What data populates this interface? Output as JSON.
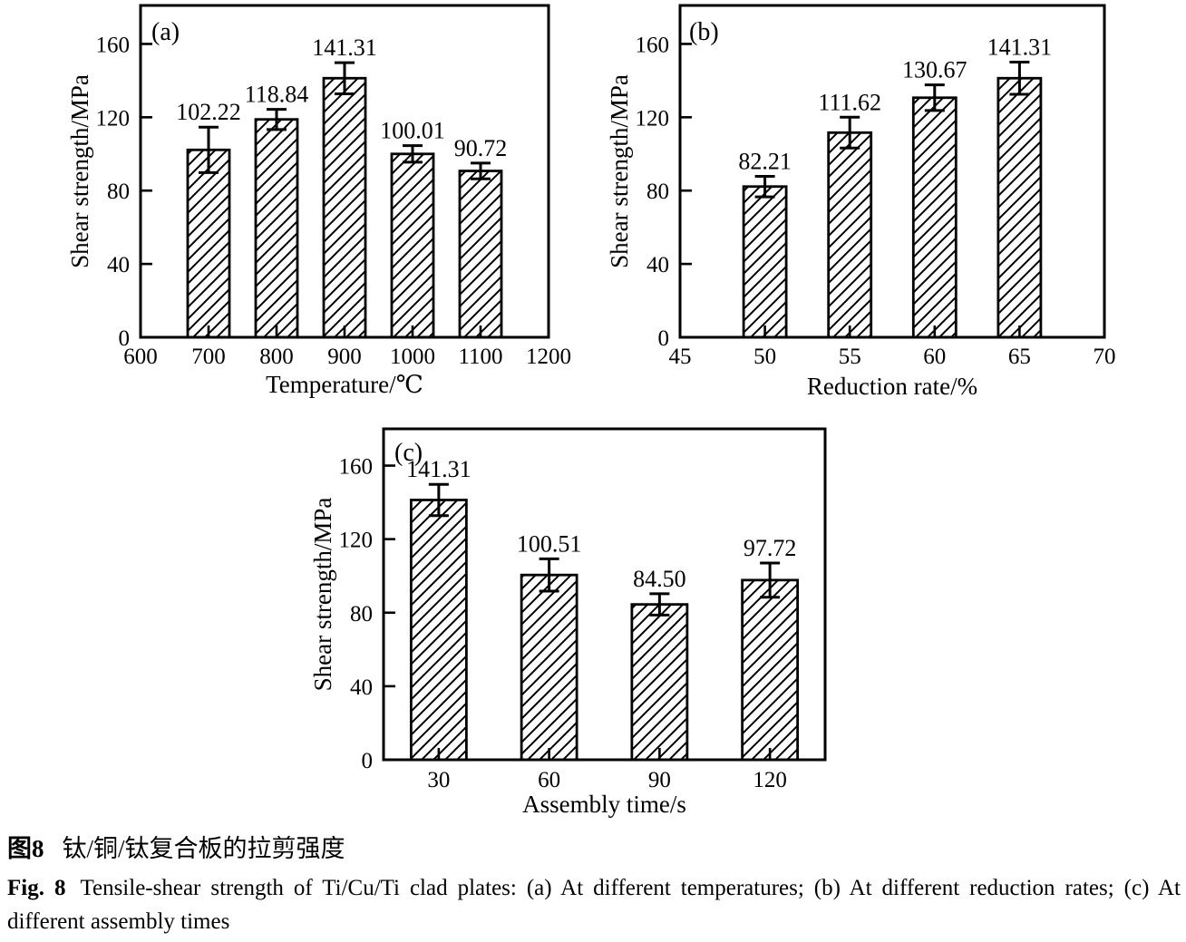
{
  "colors": {
    "ink": "#000000",
    "background": "#ffffff"
  },
  "figure": {
    "caption_cn_bold": "图8",
    "caption_cn_text": "钛/铜/钛复合板的拉剪强度",
    "caption_en_bold": "Fig. 8",
    "caption_en_line1": "Tensile-shear strength of Ti/Cu/Ti clad plates: (a) At different temperatures; (b) At different reduction rates; (c) At",
    "caption_en_line2": "different assembly times"
  },
  "chart_data": [
    {
      "type": "bar",
      "panel": "(a)",
      "xlabel": "Temperature/℃",
      "ylabel": "Shear strength/MPa",
      "x_axis": "linear",
      "xlim": [
        600,
        1200
      ],
      "x_ticks": [
        600,
        700,
        800,
        900,
        1000,
        1100,
        1200
      ],
      "y_ticks": [
        0,
        40,
        80,
        120,
        160
      ],
      "ylim": [
        0,
        181
      ],
      "grid": false,
      "bar_fill": "diagonal-hatch",
      "categories": [
        700,
        800,
        900,
        1000,
        1100
      ],
      "values": [
        102.22,
        118.84,
        141.31,
        100.01,
        90.72
      ],
      "errors": [
        12.4,
        5.5,
        8.5,
        4.5,
        4.3
      ],
      "labels": [
        "102.22",
        "118.84",
        "141.31",
        "100.01",
        "90.72"
      ]
    },
    {
      "type": "bar",
      "panel": "(b)",
      "xlabel": "Reduction rate/%",
      "ylabel": "Shear strength/MPa",
      "x_axis": "linear",
      "xlim": [
        45,
        70
      ],
      "x_ticks": [
        45,
        50,
        55,
        60,
        65,
        70
      ],
      "y_ticks": [
        0,
        40,
        80,
        120,
        160
      ],
      "ylim": [
        0,
        181
      ],
      "grid": false,
      "bar_fill": "diagonal-hatch",
      "categories": [
        50,
        55,
        60,
        65
      ],
      "values": [
        82.21,
        111.62,
        130.67,
        141.31
      ],
      "errors": [
        5.6,
        8.4,
        7.0,
        8.8
      ],
      "labels": [
        "82.21",
        "111.62",
        "130.67",
        "141.31"
      ]
    },
    {
      "type": "bar",
      "panel": "(c)",
      "xlabel": "Assembly time/s",
      "ylabel": "Shear strength/MPa",
      "x_axis": "band",
      "x_ticks": [
        30,
        60,
        90,
        120
      ],
      "y_ticks": [
        0,
        40,
        80,
        120,
        160
      ],
      "ylim": [
        0,
        180
      ],
      "grid": false,
      "bar_fill": "diagonal-hatch",
      "categories": [
        30,
        60,
        90,
        120
      ],
      "values": [
        141.31,
        100.51,
        84.5,
        97.72
      ],
      "errors": [
        8.5,
        8.8,
        5.8,
        9.3
      ],
      "labels": [
        "141.31",
        "100.51",
        "84.50",
        "97.72"
      ]
    }
  ]
}
